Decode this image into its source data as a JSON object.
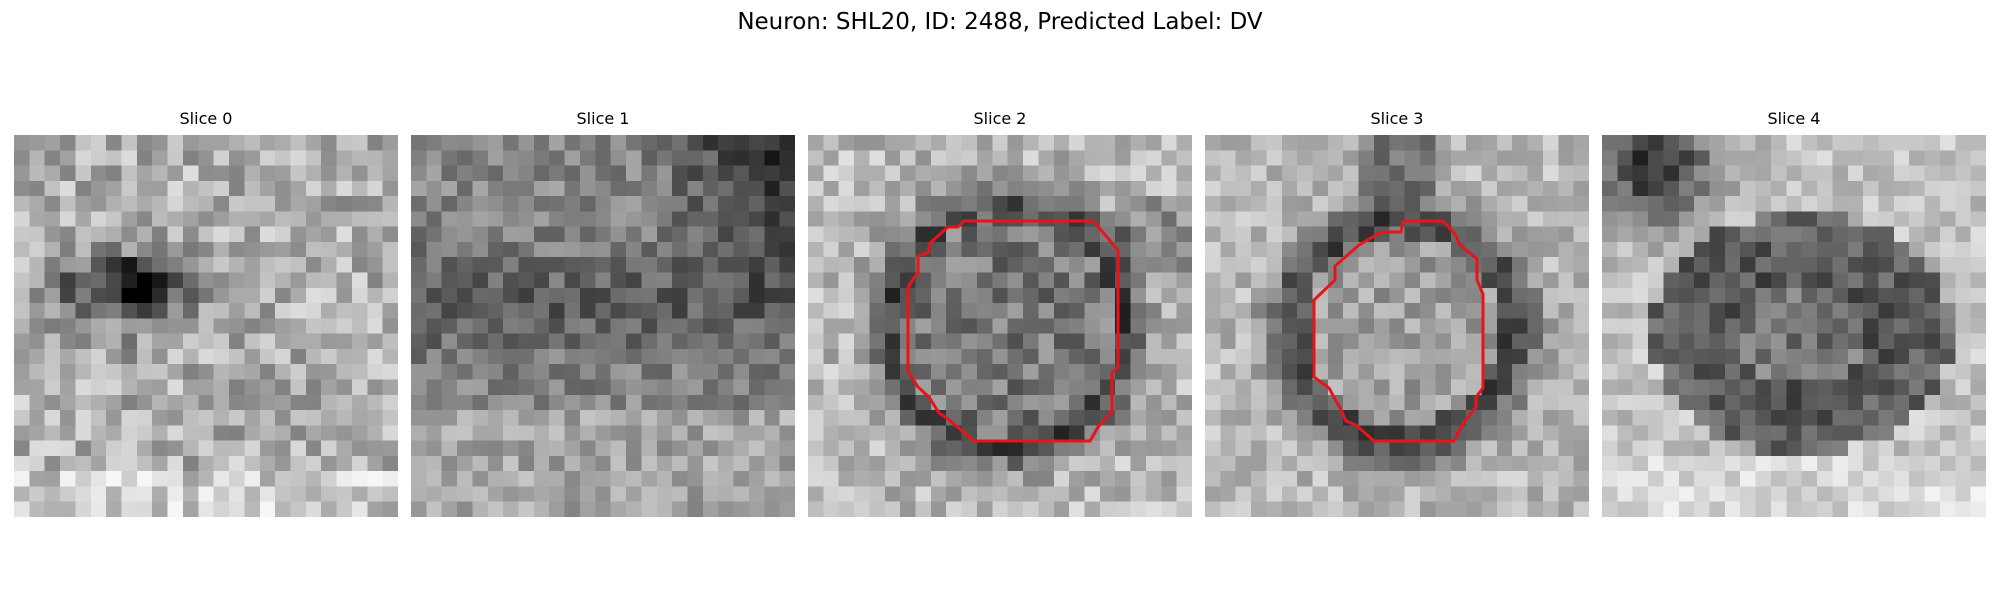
{
  "figure": {
    "title": "Neuron: SHL20, ID: 2488, Predicted Label: DV"
  },
  "slices": [
    {
      "title": "Slice 0",
      "has_contour": false
    },
    {
      "title": "Slice 1",
      "has_contour": false
    },
    {
      "title": "Slice 2",
      "has_contour": true
    },
    {
      "title": "Slice 3",
      "has_contour": true
    },
    {
      "title": "Slice 4",
      "has_contour": false
    }
  ],
  "style": {
    "contour_color": "#e8141b",
    "colormap": "gray"
  }
}
